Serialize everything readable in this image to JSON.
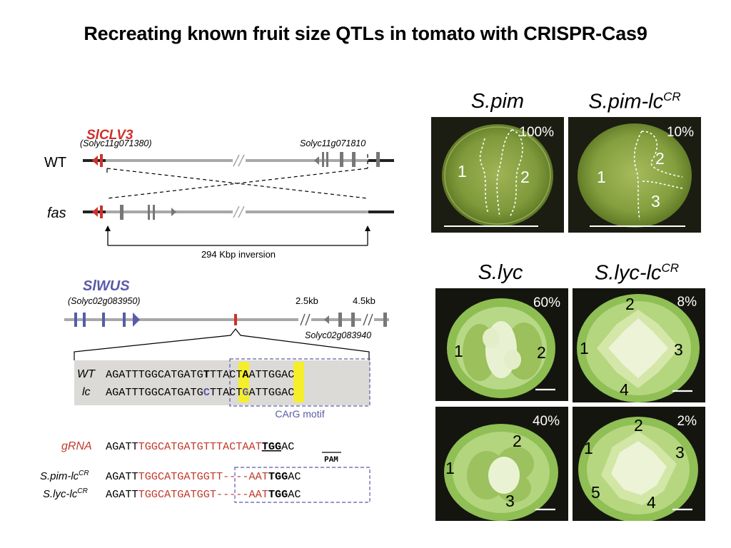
{
  "title": "Recreating known fruit size QTLs in tomato with CRISPR-Cas9",
  "clv3": {
    "gene": "SlCLV3",
    "locus": "(Solyc11g071380)",
    "neighbor": "Solyc11g071810",
    "wt_label": "WT",
    "fas_label": "fas",
    "inversion": "294 Kbp inversion",
    "color": "#d0302a"
  },
  "wus": {
    "gene": "SlWUS",
    "locus": "(Solyc02g083950)",
    "dist1": "2.5kb",
    "dist2": "4.5kb",
    "neighbor": "Solyc02g083940",
    "color": "#5a5aa8"
  },
  "seq": {
    "wt_label": "WT",
    "lc_label": "lc",
    "wt_a": "AGATTTGGCATGATG",
    "wt_b": "T",
    "wt_c": "TTACT",
    "wt_d": "A",
    "wt_e": "ATTGGAC",
    "lc_a": "AGATTTGGCATGATG",
    "lc_b": "C",
    "lc_c": "TTACT",
    "lc_d": "G",
    "lc_e": "ATTGGAC",
    "motif": "CArG motif"
  },
  "grna": {
    "label": "gRNA",
    "a": "AGATT",
    "b": "TGGCATGATGTTTACTAAT",
    "c": "TGG",
    "d": "AC",
    "pam": "PAM"
  },
  "alleles": [
    {
      "label": "S.pim-lc",
      "sup": "CR",
      "a": "AGATT",
      "b": "TGGCATGATG",
      "c": "GTT",
      "gap": "----",
      "d": "AAT",
      "e": "TGG",
      "f": "AC"
    },
    {
      "label": "S.lyc-lc",
      "sup": "CR",
      "a": "AGATT",
      "b": "TGGCATGATG",
      "c": "GT",
      "gap": "-----",
      "d": "AAT",
      "e": "TGG",
      "f": "AC"
    }
  ],
  "photos": {
    "spim": {
      "label": "S.pim",
      "pct": "100%",
      "locules": [
        "1",
        "2"
      ]
    },
    "spim_lc": {
      "label": "S.pim-lc",
      "sup": "CR",
      "pct": "10%",
      "locules": [
        "1",
        "2",
        "3"
      ]
    },
    "slyc_lab": {
      "label": "S.lyc"
    },
    "slyc_lc_lab": {
      "label": "S.lyc-lc",
      "sup": "CR"
    },
    "slyc_a": {
      "pct": "60%",
      "locules": [
        "1",
        "2"
      ]
    },
    "slyc_lc_a": {
      "pct": "8%",
      "locules": [
        "2",
        "1",
        "3",
        "4"
      ]
    },
    "slyc_b": {
      "pct": "40%",
      "locules": [
        "2",
        "1",
        "3"
      ]
    },
    "slyc_lc_b": {
      "pct": "2%",
      "locules": [
        "2",
        "1",
        "3",
        "5",
        "4"
      ]
    }
  }
}
